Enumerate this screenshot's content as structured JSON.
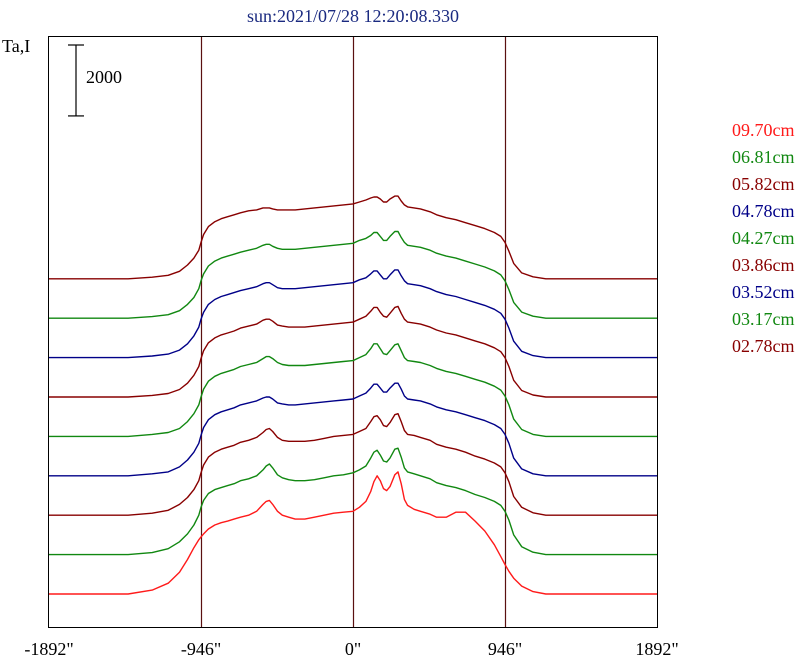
{
  "chart_data": {
    "type": "line",
    "title": "sun:2021/07/28 12:20:08.330",
    "ylabel": "Ta,I",
    "scale_bar_label": "2000",
    "scale_bar_value": 2000,
    "xlim": [
      -1892,
      1892
    ],
    "x_ticks": [
      {
        "value": -1892,
        "label": "-1892\""
      },
      {
        "value": -946,
        "label": "-946\""
      },
      {
        "value": 0,
        "label": "0\""
      },
      {
        "value": 946,
        "label": "946\""
      },
      {
        "value": 1892,
        "label": "1892\""
      }
    ],
    "vertical_lines": [
      -946,
      0,
      946
    ],
    "stack_offset": 2000,
    "legend_position": "right",
    "profile_x": [
      -1892,
      -1600,
      -1400,
      -1250,
      -1150,
      -1080,
      -1030,
      -990,
      -960,
      -946,
      -930,
      -900,
      -860,
      -820,
      -780,
      -740,
      -700,
      -650,
      -600,
      -560,
      -540,
      -520,
      -500,
      -470,
      -440,
      -400,
      -360,
      -300,
      -240,
      -180,
      -120,
      -60,
      0,
      40,
      80,
      110,
      130,
      150,
      170,
      190,
      210,
      230,
      260,
      280,
      300,
      320,
      340,
      380,
      420,
      480,
      520,
      580,
      640,
      700,
      760,
      820,
      880,
      920,
      946,
      970,
      1000,
      1050,
      1120,
      1200,
      1350,
      1550,
      1892
    ],
    "series": [
      {
        "name": "09.70cm",
        "color": "#ff1a1a",
        "baseline": 0,
        "values": [
          0,
          0,
          0,
          200,
          550,
          1100,
          1750,
          2350,
          2750,
          2900,
          3050,
          3300,
          3500,
          3620,
          3700,
          3800,
          3900,
          4000,
          4200,
          4550,
          4700,
          4750,
          4550,
          4200,
          4000,
          3900,
          3800,
          3800,
          3900,
          4000,
          4100,
          4150,
          4200,
          4400,
          4700,
          5200,
          5700,
          6000,
          5750,
          5350,
          5250,
          5450,
          6050,
          6200,
          5600,
          4800,
          4500,
          4300,
          4200,
          4050,
          3900,
          3900,
          4150,
          4150,
          3700,
          3200,
          2500,
          1900,
          1500,
          1150,
          800,
          400,
          120,
          0,
          0,
          0,
          0
        ]
      },
      {
        "name": "06.81cm",
        "color": "#118811",
        "baseline": 2000,
        "values": [
          0,
          0,
          0,
          100,
          300,
          650,
          1050,
          1500,
          2000,
          2400,
          2750,
          3100,
          3300,
          3400,
          3500,
          3600,
          3750,
          3850,
          4000,
          4300,
          4500,
          4600,
          4400,
          4050,
          3900,
          3800,
          3750,
          3750,
          3800,
          3900,
          4000,
          4050,
          4150,
          4300,
          4500,
          4900,
          5200,
          5300,
          5050,
          4750,
          4700,
          4900,
          5350,
          5400,
          4950,
          4400,
          4200,
          4100,
          4000,
          3850,
          3650,
          3500,
          3400,
          3250,
          3050,
          2900,
          2700,
          2500,
          2200,
          1750,
          1000,
          400,
          120,
          0,
          0,
          0,
          0
        ]
      },
      {
        "name": "05.82cm",
        "color": "#880000",
        "baseline": 4000,
        "values": [
          0,
          0,
          0,
          100,
          250,
          550,
          900,
          1300,
          1750,
          2150,
          2550,
          2950,
          3200,
          3350,
          3450,
          3550,
          3700,
          3800,
          3950,
          4200,
          4350,
          4400,
          4250,
          3950,
          3800,
          3750,
          3750,
          3750,
          3800,
          3900,
          4000,
          4050,
          4100,
          4250,
          4400,
          4750,
          5000,
          5050,
          4850,
          4550,
          4500,
          4700,
          5100,
          5150,
          4750,
          4300,
          4100,
          4050,
          3950,
          3800,
          3600,
          3450,
          3350,
          3200,
          3000,
          2850,
          2650,
          2450,
          2150,
          1700,
          950,
          400,
          120,
          0,
          0,
          0,
          0
        ]
      },
      {
        "name": "04.78cm",
        "color": "#000088",
        "baseline": 6000,
        "values": [
          0,
          0,
          0,
          100,
          200,
          450,
          800,
          1200,
          1650,
          2050,
          2450,
          2850,
          3100,
          3250,
          3350,
          3450,
          3600,
          3700,
          3800,
          3950,
          4000,
          4000,
          3900,
          3700,
          3650,
          3600,
          3600,
          3650,
          3700,
          3750,
          3800,
          3850,
          3900,
          4050,
          4200,
          4450,
          4650,
          4650,
          4450,
          4250,
          4250,
          4450,
          4700,
          4700,
          4400,
          4050,
          3900,
          3850,
          3800,
          3650,
          3500,
          3350,
          3250,
          3100,
          2950,
          2800,
          2600,
          2400,
          2100,
          1650,
          900,
          350,
          100,
          0,
          0,
          0,
          0
        ]
      },
      {
        "name": "04.27cm",
        "color": "#118811",
        "baseline": 8000,
        "values": [
          0,
          0,
          0,
          100,
          200,
          400,
          750,
          1150,
          1600,
          2000,
          2400,
          2800,
          3050,
          3200,
          3300,
          3400,
          3550,
          3650,
          3750,
          3950,
          4050,
          4050,
          3950,
          3750,
          3650,
          3600,
          3600,
          3600,
          3650,
          3700,
          3750,
          3800,
          3850,
          4000,
          4150,
          4450,
          4700,
          4700,
          4450,
          4200,
          4150,
          4350,
          4650,
          4700,
          4350,
          4000,
          3850,
          3800,
          3750,
          3600,
          3450,
          3300,
          3200,
          3050,
          2900,
          2750,
          2550,
          2350,
          2050,
          1600,
          880,
          350,
          100,
          0,
          0,
          0,
          0
        ]
      },
      {
        "name": "03.86cm",
        "color": "#880000",
        "baseline": 10000,
        "values": [
          0,
          0,
          0,
          80,
          180,
          380,
          700,
          1100,
          1550,
          1950,
          2350,
          2750,
          3000,
          3150,
          3250,
          3350,
          3500,
          3600,
          3700,
          3900,
          3950,
          3950,
          3850,
          3650,
          3600,
          3550,
          3550,
          3550,
          3600,
          3650,
          3700,
          3750,
          3800,
          3950,
          4100,
          4350,
          4550,
          4550,
          4300,
          4100,
          4050,
          4250,
          4550,
          4600,
          4250,
          3950,
          3800,
          3750,
          3700,
          3550,
          3400,
          3250,
          3150,
          3000,
          2850,
          2700,
          2500,
          2300,
          2000,
          1550,
          850,
          330,
          100,
          0,
          0,
          0,
          0
        ]
      },
      {
        "name": "03.52cm",
        "color": "#000088",
        "baseline": 12000,
        "values": [
          0,
          0,
          0,
          80,
          180,
          380,
          700,
          1100,
          1550,
          1950,
          2300,
          2700,
          2950,
          3100,
          3200,
          3300,
          3400,
          3500,
          3600,
          3750,
          3800,
          3800,
          3700,
          3550,
          3500,
          3500,
          3500,
          3550,
          3600,
          3650,
          3700,
          3750,
          3800,
          3950,
          4050,
          4250,
          4400,
          4400,
          4200,
          4000,
          4000,
          4200,
          4450,
          4450,
          4150,
          3900,
          3750,
          3700,
          3650,
          3500,
          3350,
          3200,
          3100,
          2950,
          2800,
          2650,
          2450,
          2250,
          1950,
          1500,
          830,
          320,
          100,
          0,
          0,
          0,
          0
        ]
      },
      {
        "name": "03.17cm",
        "color": "#118811",
        "baseline": 14000,
        "values": [
          0,
          0,
          0,
          80,
          180,
          380,
          700,
          1050,
          1500,
          1900,
          2250,
          2650,
          2900,
          3050,
          3150,
          3250,
          3350,
          3450,
          3550,
          3700,
          3750,
          3750,
          3650,
          3550,
          3500,
          3500,
          3500,
          3550,
          3600,
          3650,
          3700,
          3750,
          3800,
          3950,
          4050,
          4200,
          4350,
          4350,
          4150,
          3950,
          3950,
          4150,
          4400,
          4400,
          4100,
          3850,
          3700,
          3650,
          3600,
          3450,
          3300,
          3150,
          3050,
          2900,
          2750,
          2600,
          2400,
          2200,
          1900,
          1450,
          800,
          310,
          100,
          0,
          0,
          0,
          0
        ]
      },
      {
        "name": "02.78cm",
        "color": "#880000",
        "baseline": 16000,
        "values": [
          0,
          0,
          0,
          80,
          180,
          380,
          700,
          1050,
          1450,
          1850,
          2250,
          2650,
          2900,
          3050,
          3150,
          3250,
          3350,
          3450,
          3500,
          3600,
          3600,
          3600,
          3550,
          3500,
          3500,
          3500,
          3500,
          3550,
          3600,
          3650,
          3700,
          3750,
          3800,
          3900,
          4000,
          4100,
          4150,
          4150,
          4050,
          3900,
          3900,
          4050,
          4200,
          4200,
          3950,
          3750,
          3650,
          3600,
          3550,
          3400,
          3250,
          3100,
          3000,
          2850,
          2700,
          2550,
          2350,
          2150,
          1850,
          1400,
          780,
          300,
          100,
          0,
          0,
          0,
          0
        ]
      }
    ]
  }
}
